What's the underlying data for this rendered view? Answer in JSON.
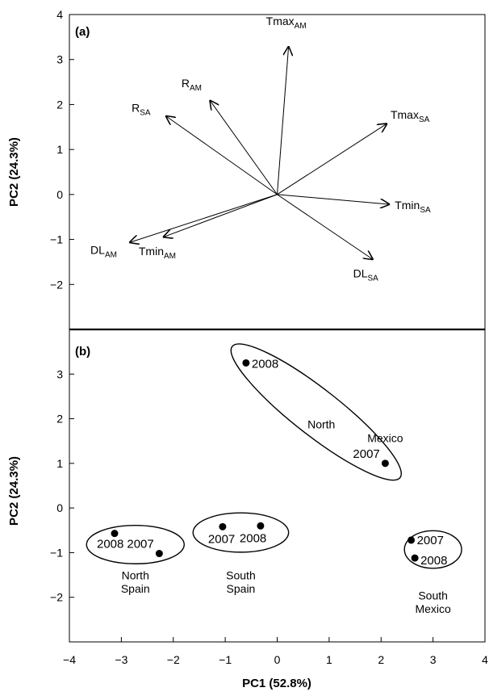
{
  "chart_data": [
    {
      "type": "biplot",
      "panel_label": "(a)",
      "ylabel": "PC2 (24.3%)",
      "xlim": [
        -4,
        4
      ],
      "ylim": [
        -3,
        4
      ],
      "yticks": [
        "4",
        "3",
        "2",
        "1",
        "0",
        "−1",
        "−2"
      ],
      "ytick_values": [
        4,
        3,
        2,
        1,
        0,
        -1,
        -2
      ],
      "vectors": [
        {
          "base": "Tmax",
          "sub": "AM",
          "x": 0.22,
          "y": 3.3
        },
        {
          "base": "R",
          "sub": "AM",
          "x": -1.3,
          "y": 2.1
        },
        {
          "base": "R",
          "sub": "SA",
          "x": -2.15,
          "y": 1.75
        },
        {
          "base": "Tmax",
          "sub": "SA",
          "x": 2.12,
          "y": 1.58
        },
        {
          "base": "Tmin",
          "sub": "SA",
          "x": 2.17,
          "y": -0.22
        },
        {
          "base": "DL",
          "sub": "AM",
          "x": -2.85,
          "y": -1.07
        },
        {
          "base": "Tmin",
          "sub": "AM",
          "x": -2.2,
          "y": -0.95
        },
        {
          "base": "DL",
          "sub": "SA",
          "x": 1.85,
          "y": -1.45
        }
      ]
    },
    {
      "type": "scatter",
      "panel_label": "(b)",
      "xlabel": "PC1 (52.8%)",
      "ylabel": "PC2 (24.3%)",
      "xlim": [
        -4,
        4
      ],
      "ylim": [
        -3,
        4
      ],
      "xticks": [
        "−4",
        "−3",
        "−2",
        "−1",
        "0",
        "1",
        "2",
        "3",
        "4"
      ],
      "xtick_values": [
        -4,
        -3,
        -2,
        -1,
        0,
        1,
        2,
        3,
        4
      ],
      "yticks": [
        "3",
        "2",
        "1",
        "0",
        "−1",
        "−2"
      ],
      "ytick_values": [
        3,
        2,
        1,
        0,
        -1,
        -2
      ],
      "points": [
        {
          "label": "2008",
          "x": -0.6,
          "y": 3.25,
          "group": "North Mexico"
        },
        {
          "label": "2007",
          "x": 2.08,
          "y": 1.0,
          "group": "North Mexico"
        },
        {
          "label": "2008",
          "x": -3.13,
          "y": -0.57,
          "group": "North Spain"
        },
        {
          "label": "2007",
          "x": -2.27,
          "y": -1.02,
          "group": "North Spain"
        },
        {
          "label": "2007",
          "x": -1.05,
          "y": -0.42,
          "group": "South Spain"
        },
        {
          "label": "2008",
          "x": -0.32,
          "y": -0.4,
          "group": "South Spain"
        },
        {
          "label": "2007",
          "x": 2.58,
          "y": -0.72,
          "group": "South Mexico"
        },
        {
          "label": "2008",
          "x": 2.65,
          "y": -1.12,
          "group": "South Mexico"
        }
      ],
      "groups": [
        {
          "line1": "North",
          "line2": "Mexico"
        },
        {
          "line1": "North",
          "line2": "Spain"
        },
        {
          "line1": "South",
          "line2": "Spain"
        },
        {
          "line1": "South",
          "line2": "Mexico"
        }
      ]
    }
  ]
}
